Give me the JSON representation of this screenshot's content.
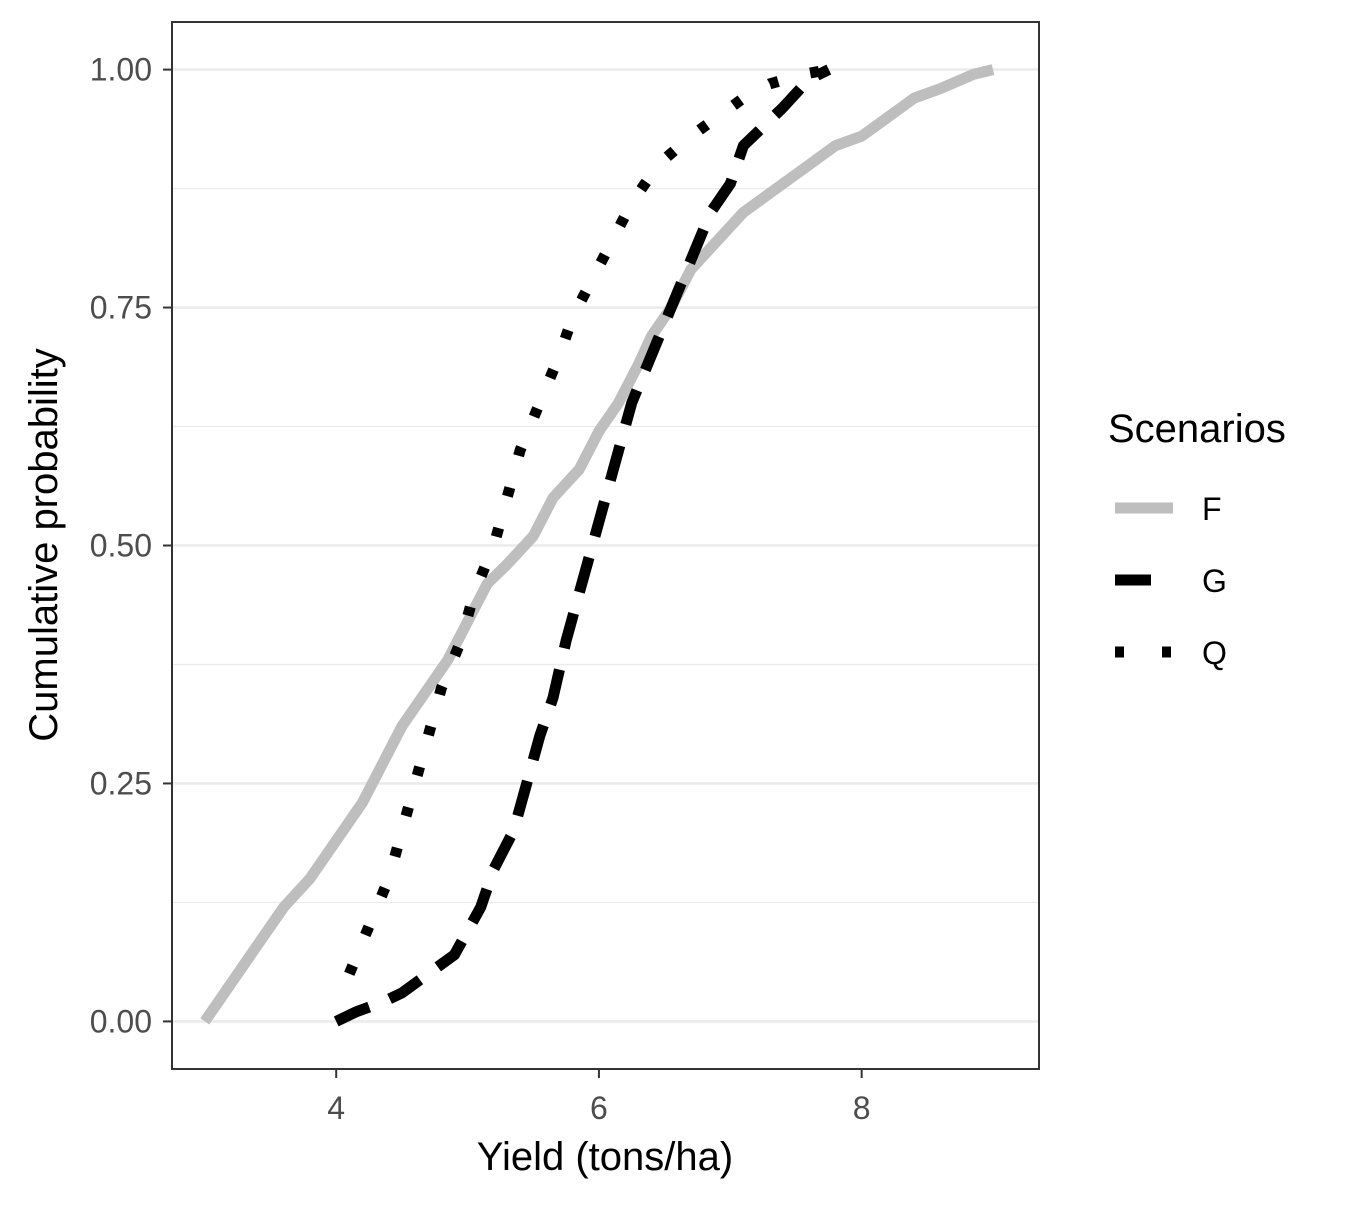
{
  "chart_data": {
    "type": "line",
    "chart_subtype": "empirical cumulative distribution (step lines)",
    "title": "",
    "xlabel": "Yield (tons/ha)",
    "ylabel": "Cumulative probability",
    "xlim": [
      2.75,
      9.35
    ],
    "ylim": [
      -0.05,
      1.05
    ],
    "x_ticks": [
      4,
      6,
      8
    ],
    "x_tick_labels": [
      "4",
      "6",
      "8"
    ],
    "y_ticks": [
      0,
      0.25,
      0.5,
      0.75,
      1
    ],
    "y_tick_labels": [
      "0.00",
      "0.25",
      "0.50",
      "0.75",
      "1.00"
    ],
    "y_minor_gridlines": [
      0.125,
      0.375,
      0.625,
      0.875
    ],
    "grid": "horizontal only (major and minor)",
    "legend": {
      "title": "Scenarios",
      "placement": "right",
      "entries": [
        "F",
        "G",
        "Q"
      ]
    },
    "series": [
      {
        "name": "F",
        "color": "#bebebe",
        "linestyle": "solid",
        "points": [
          [
            3.0,
            0.0
          ],
          [
            3.15,
            0.03
          ],
          [
            3.35,
            0.07
          ],
          [
            3.5,
            0.1
          ],
          [
            3.6,
            0.12
          ],
          [
            3.8,
            0.15
          ],
          [
            4.0,
            0.19
          ],
          [
            4.2,
            0.23
          ],
          [
            4.35,
            0.27
          ],
          [
            4.5,
            0.31
          ],
          [
            4.7,
            0.35
          ],
          [
            4.85,
            0.38
          ],
          [
            5.0,
            0.42
          ],
          [
            5.15,
            0.46
          ],
          [
            5.3,
            0.48
          ],
          [
            5.5,
            0.51
          ],
          [
            5.65,
            0.55
          ],
          [
            5.85,
            0.58
          ],
          [
            6.0,
            0.62
          ],
          [
            6.15,
            0.65
          ],
          [
            6.3,
            0.69
          ],
          [
            6.4,
            0.72
          ],
          [
            6.55,
            0.75
          ],
          [
            6.7,
            0.79
          ],
          [
            6.9,
            0.82
          ],
          [
            7.1,
            0.85
          ],
          [
            7.3,
            0.87
          ],
          [
            7.6,
            0.9
          ],
          [
            7.8,
            0.92
          ],
          [
            8.0,
            0.93
          ],
          [
            8.2,
            0.95
          ],
          [
            8.4,
            0.97
          ],
          [
            8.6,
            0.98
          ],
          [
            8.85,
            0.995
          ],
          [
            9.0,
            1.0
          ]
        ]
      },
      {
        "name": "G",
        "color": "#000000",
        "linestyle": "dashed",
        "points": [
          [
            4.0,
            0.0
          ],
          [
            4.15,
            0.01
          ],
          [
            4.35,
            0.02
          ],
          [
            4.5,
            0.03
          ],
          [
            4.7,
            0.05
          ],
          [
            4.9,
            0.07
          ],
          [
            5.1,
            0.12
          ],
          [
            5.2,
            0.16
          ],
          [
            5.35,
            0.2
          ],
          [
            5.45,
            0.25
          ],
          [
            5.55,
            0.3
          ],
          [
            5.65,
            0.34
          ],
          [
            5.75,
            0.4
          ],
          [
            5.85,
            0.45
          ],
          [
            5.95,
            0.5
          ],
          [
            6.05,
            0.55
          ],
          [
            6.15,
            0.6
          ],
          [
            6.25,
            0.65
          ],
          [
            6.4,
            0.7
          ],
          [
            6.55,
            0.75
          ],
          [
            6.7,
            0.8
          ],
          [
            6.85,
            0.85
          ],
          [
            7.0,
            0.88
          ],
          [
            7.1,
            0.92
          ],
          [
            7.25,
            0.94
          ],
          [
            7.4,
            0.96
          ],
          [
            7.6,
            0.99
          ],
          [
            7.75,
            1.0
          ]
        ]
      },
      {
        "name": "Q",
        "color": "#000000",
        "linestyle": "dotted",
        "points": [
          [
            4.1,
            0.05
          ],
          [
            4.25,
            0.1
          ],
          [
            4.4,
            0.15
          ],
          [
            4.5,
            0.2
          ],
          [
            4.6,
            0.25
          ],
          [
            4.7,
            0.3
          ],
          [
            4.8,
            0.35
          ],
          [
            4.95,
            0.4
          ],
          [
            5.05,
            0.45
          ],
          [
            5.2,
            0.5
          ],
          [
            5.3,
            0.55
          ],
          [
            5.4,
            0.6
          ],
          [
            5.55,
            0.65
          ],
          [
            5.7,
            0.7
          ],
          [
            5.8,
            0.74
          ],
          [
            5.95,
            0.78
          ],
          [
            6.1,
            0.82
          ],
          [
            6.25,
            0.86
          ],
          [
            6.45,
            0.9
          ],
          [
            6.7,
            0.93
          ],
          [
            6.9,
            0.95
          ],
          [
            7.1,
            0.97
          ],
          [
            7.3,
            0.985
          ],
          [
            7.55,
            0.995
          ],
          [
            7.75,
            1.0
          ]
        ]
      }
    ]
  }
}
